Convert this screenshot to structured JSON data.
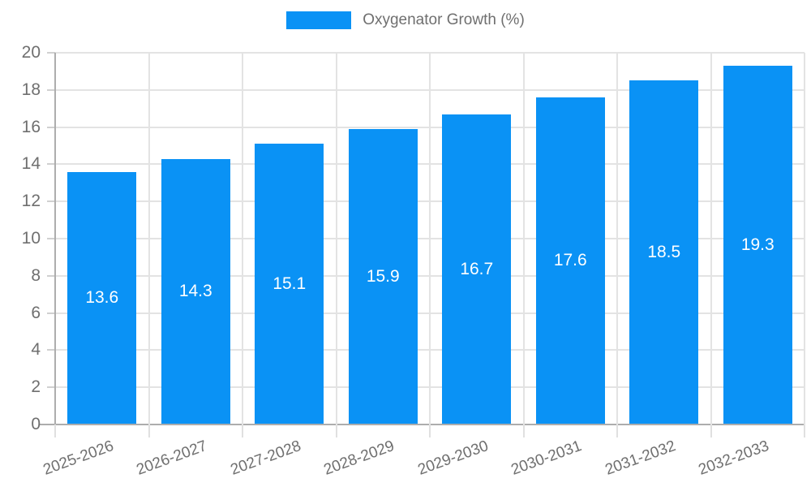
{
  "chart_data": {
    "type": "bar",
    "title": "Oxygenator Growth (%)",
    "legend": {
      "label": "Oxygenator Growth (%)",
      "position": "top"
    },
    "categories": [
      "2025-2026",
      "2026-2027",
      "2027-2028",
      "2028-2029",
      "2029-2030",
      "2030-2031",
      "2031-2032",
      "2032-2033"
    ],
    "values": [
      13.6,
      14.3,
      15.1,
      15.9,
      16.7,
      17.6,
      18.5,
      19.3
    ],
    "value_labels": [
      "13.6",
      "14.3",
      "15.1",
      "15.9",
      "16.7",
      "17.6",
      "18.5",
      "19.3"
    ],
    "value_label_position": "inside-center",
    "xlabel": "",
    "ylabel": "",
    "ylim": [
      0,
      20
    ],
    "y_ticks": [
      0,
      2,
      4,
      6,
      8,
      10,
      12,
      14,
      16,
      18,
      20
    ],
    "grid": true,
    "x_label_rotation_deg": -20,
    "colors": {
      "bar": "#0a92f5",
      "grid": "#e3e3e3",
      "axis": "#adadad",
      "tick_text": "#6f6f6f",
      "legend_text": "#6f6f6f",
      "value_label_text": "#ffffff",
      "background": "#ffffff"
    }
  }
}
